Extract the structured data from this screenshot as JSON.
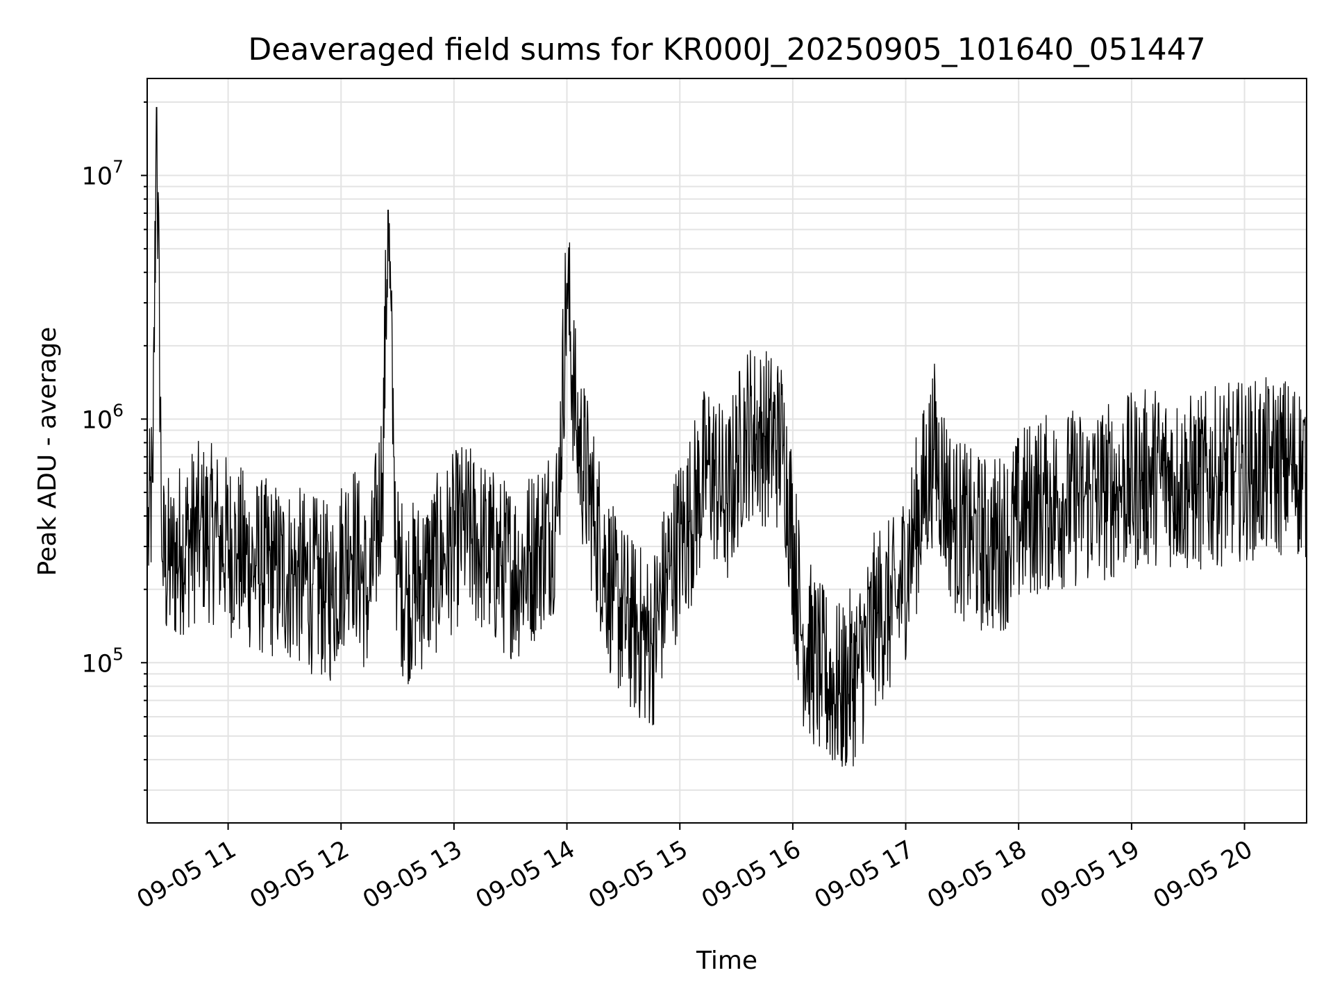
{
  "chart_data": {
    "type": "line",
    "title": "Deaveraged field sums for KR000J_20250905_101640_051447",
    "xlabel": "Time",
    "ylabel": "Peak ADU - average",
    "yscale": "log",
    "xlim": [
      "09-05 10:17",
      "09-05 20:33"
    ],
    "ylim": [
      22000,
      25000000
    ],
    "grid": true,
    "line_color": "#000000",
    "x_ticks": [
      "09-05 11",
      "09-05 12",
      "09-05 13",
      "09-05 14",
      "09-05 15",
      "09-05 16",
      "09-05 17",
      "09-05 18",
      "09-05 19",
      "09-05 20"
    ],
    "y_ticks": [
      {
        "value": 100000,
        "base": "10",
        "exp": "5"
      },
      {
        "value": 1000000,
        "base": "10",
        "exp": "6"
      },
      {
        "value": 10000000,
        "base": "10",
        "exp": "7"
      }
    ],
    "series": [
      {
        "x": [
          "09-05 10:17",
          "09-05 10:20",
          "09-05 10:22",
          "09-05 10:25",
          "09-05 10:30",
          "09-05 10:35",
          "09-05 10:45",
          "09-05 10:55",
          "09-05 11:05",
          "09-05 11:15",
          "09-05 11:25",
          "09-05 11:35",
          "09-05 11:45",
          "09-05 11:55",
          "09-05 12:05",
          "09-05 12:15",
          "09-05 12:22",
          "09-05 12:25",
          "09-05 12:28",
          "09-05 12:30",
          "09-05 12:35",
          "09-05 12:45",
          "09-05 12:55",
          "09-05 13:05",
          "09-05 13:15",
          "09-05 13:25",
          "09-05 13:35",
          "09-05 13:45",
          "09-05 13:55",
          "09-05 14:00",
          "09-05 14:05",
          "09-05 14:15",
          "09-05 14:25",
          "09-05 14:35",
          "09-05 14:45",
          "09-05 14:55",
          "09-05 15:05",
          "09-05 15:15",
          "09-05 15:25",
          "09-05 15:35",
          "09-05 15:45",
          "09-05 15:55",
          "09-05 16:05",
          "09-05 16:15",
          "09-05 16:25",
          "09-05 16:35",
          "09-05 16:45",
          "09-05 16:55",
          "09-05 17:05",
          "09-05 17:15",
          "09-05 17:25",
          "09-05 17:35",
          "09-05 17:45",
          "09-05 17:55",
          "09-05 18:05",
          "09-05 18:15",
          "09-05 18:25",
          "09-05 18:35",
          "09-05 18:45",
          "09-05 18:55",
          "09-05 19:05",
          "09-05 19:15",
          "09-05 19:25",
          "09-05 19:35",
          "09-05 19:45",
          "09-05 19:55",
          "09-05 20:05",
          "09-05 20:15",
          "09-05 20:25",
          "09-05 20:33"
        ],
        "y": [
          300000,
          550000,
          19000000,
          260000,
          250000,
          300000,
          350000,
          330000,
          280000,
          250000,
          240000,
          230000,
          210000,
          190000,
          330000,
          180000,
          600000,
          7200000,
          700000,
          230000,
          190000,
          220000,
          280000,
          350000,
          300000,
          250000,
          240000,
          300000,
          400000,
          3600000,
          900000,
          380000,
          180000,
          140000,
          120000,
          250000,
          380000,
          650000,
          450000,
          900000,
          850000,
          780000,
          130000,
          90000,
          75000,
          95000,
          160000,
          170000,
          350000,
          750000,
          380000,
          320000,
          300000,
          330000,
          430000,
          450000,
          470000,
          480000,
          500000,
          530000,
          560000,
          600000,
          550000,
          540000,
          580000,
          610000,
          620000,
          630000,
          650000,
          600000
        ]
      }
    ]
  }
}
